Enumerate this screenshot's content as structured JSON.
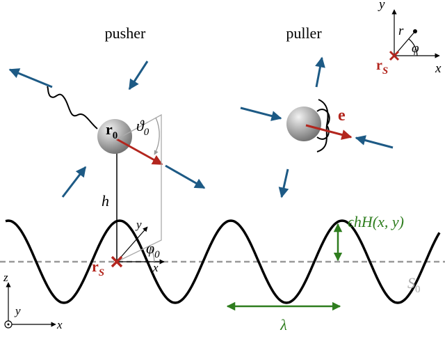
{
  "labels": {
    "pusher": "pusher",
    "puller": "puller"
  },
  "symbols": {
    "r0": {
      "base": "r",
      "sub": "0"
    },
    "theta0": {
      "base": "ϑ",
      "sub": "0"
    },
    "h": "h",
    "e": "e",
    "rS_main": {
      "base": "r",
      "sub": "S"
    },
    "rS_inset": {
      "base": "r",
      "sub": "S"
    },
    "phi0": {
      "base": "φ",
      "sub": "0"
    },
    "amplitude": "ϵhH(x, y)",
    "S0": {
      "base": "S",
      "sub": "0"
    },
    "lambda": "λ",
    "local_x": "x",
    "local_y": "y",
    "frame_x": "x",
    "frame_y": "y",
    "frame_z": "z",
    "inset_x": "x",
    "inset_y": "y",
    "inset_r": "r",
    "inset_phi": "φ"
  }
}
